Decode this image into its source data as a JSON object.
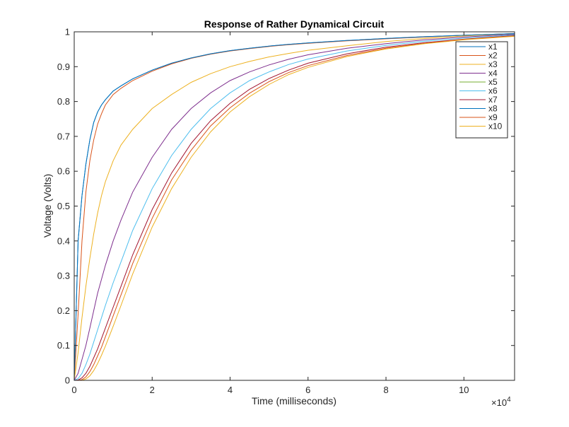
{
  "chart_data": {
    "type": "line",
    "title": "Response of Rather Dynamical Circuit",
    "xlabel": "Time (milliseconds)",
    "ylabel": "Voltage (Volts)",
    "x_multiplier_label": "×10",
    "x_multiplier_exponent": "4",
    "xlim": [
      0,
      113000
    ],
    "ylim": [
      0,
      1
    ],
    "x_ticks": [
      0,
      20000,
      40000,
      60000,
      80000,
      100000
    ],
    "x_tick_labels": [
      "0",
      "2",
      "4",
      "6",
      "8",
      "10"
    ],
    "y_ticks": [
      0,
      0.1,
      0.2,
      0.3,
      0.4,
      0.5,
      0.6,
      0.7,
      0.8,
      0.9,
      1
    ],
    "y_tick_labels": [
      "0",
      "0.1",
      "0.2",
      "0.3",
      "0.4",
      "0.5",
      "0.6",
      "0.7",
      "0.8",
      "0.9",
      "1"
    ],
    "grid": false,
    "legend_position": "top-right",
    "x": [
      0,
      1000,
      2000,
      3000,
      4000,
      5000,
      6000,
      7000,
      8000,
      10000,
      12000,
      15000,
      20000,
      25000,
      30000,
      35000,
      40000,
      45000,
      50000,
      55000,
      60000,
      70000,
      80000,
      90000,
      100000,
      113000
    ],
    "series": [
      {
        "name": "x1",
        "color": "#0072BD",
        "values": [
          0,
          0.4,
          0.53,
          0.62,
          0.69,
          0.74,
          0.77,
          0.79,
          0.805,
          0.83,
          0.845,
          0.865,
          0.89,
          0.91,
          0.925,
          0.937,
          0.946,
          0.953,
          0.959,
          0.964,
          0.968,
          0.975,
          0.981,
          0.986,
          0.99,
          0.995
        ]
      },
      {
        "name": "x2",
        "color": "#D95319",
        "values": [
          0,
          0.19,
          0.4,
          0.54,
          0.63,
          0.69,
          0.735,
          0.765,
          0.79,
          0.82,
          0.838,
          0.86,
          0.887,
          0.908,
          0.924,
          0.936,
          0.945,
          0.952,
          0.958,
          0.963,
          0.967,
          0.974,
          0.98,
          0.985,
          0.99,
          0.995
        ]
      },
      {
        "name": "x3",
        "color": "#EDB120",
        "values": [
          0,
          0.08,
          0.18,
          0.27,
          0.35,
          0.42,
          0.48,
          0.53,
          0.57,
          0.63,
          0.675,
          0.72,
          0.78,
          0.82,
          0.855,
          0.88,
          0.9,
          0.915,
          0.928,
          0.938,
          0.947,
          0.96,
          0.972,
          0.981,
          0.988,
          0.995
        ]
      },
      {
        "name": "x4",
        "color": "#7E2F8E",
        "values": [
          0,
          0.02,
          0.06,
          0.1,
          0.15,
          0.2,
          0.25,
          0.29,
          0.33,
          0.4,
          0.46,
          0.54,
          0.64,
          0.72,
          0.78,
          0.825,
          0.86,
          0.885,
          0.905,
          0.921,
          0.934,
          0.953,
          0.966,
          0.977,
          0.985,
          0.993
        ]
      },
      {
        "name": "x5",
        "color": "#77AC30",
        "values": [
          0,
          0,
          0,
          0,
          0,
          0,
          0,
          0,
          0,
          0,
          0,
          0,
          0,
          0,
          0,
          0,
          0,
          0,
          0,
          0,
          0,
          0,
          0,
          0,
          0,
          0
        ]
      },
      {
        "name": "x6",
        "color": "#4DBEEE",
        "values": [
          0,
          0.005,
          0.02,
          0.045,
          0.075,
          0.11,
          0.145,
          0.18,
          0.215,
          0.28,
          0.34,
          0.43,
          0.55,
          0.645,
          0.72,
          0.78,
          0.825,
          0.86,
          0.885,
          0.906,
          0.922,
          0.945,
          0.961,
          0.973,
          0.982,
          0.991
        ]
      },
      {
        "name": "x7",
        "color": "#A2142F",
        "values": [
          0,
          0.001,
          0.007,
          0.02,
          0.04,
          0.065,
          0.09,
          0.12,
          0.15,
          0.21,
          0.27,
          0.36,
          0.49,
          0.595,
          0.68,
          0.745,
          0.795,
          0.835,
          0.866,
          0.89,
          0.91,
          0.937,
          0.956,
          0.969,
          0.979,
          0.989
        ]
      },
      {
        "name": "x8",
        "color": "#0072BD",
        "values": [
          0,
          0.4,
          0.53,
          0.62,
          0.69,
          0.74,
          0.77,
          0.79,
          0.805,
          0.83,
          0.845,
          0.865,
          0.89,
          0.91,
          0.925,
          0.937,
          0.946,
          0.953,
          0.959,
          0.964,
          0.968,
          0.975,
          0.981,
          0.986,
          0.99,
          0.995
        ]
      },
      {
        "name": "x9",
        "color": "#D95319",
        "values": [
          0,
          0,
          0.002,
          0.01,
          0.025,
          0.045,
          0.07,
          0.095,
          0.125,
          0.185,
          0.245,
          0.335,
          0.465,
          0.575,
          0.66,
          0.73,
          0.782,
          0.824,
          0.857,
          0.883,
          0.903,
          0.932,
          0.953,
          0.967,
          0.978,
          0.988
        ]
      },
      {
        "name": "x10",
        "color": "#EDB120",
        "values": [
          0,
          0,
          0,
          0.004,
          0.013,
          0.028,
          0.048,
          0.072,
          0.098,
          0.155,
          0.215,
          0.305,
          0.44,
          0.55,
          0.64,
          0.713,
          0.77,
          0.814,
          0.849,
          0.877,
          0.898,
          0.929,
          0.951,
          0.966,
          0.977,
          0.987
        ]
      }
    ]
  }
}
